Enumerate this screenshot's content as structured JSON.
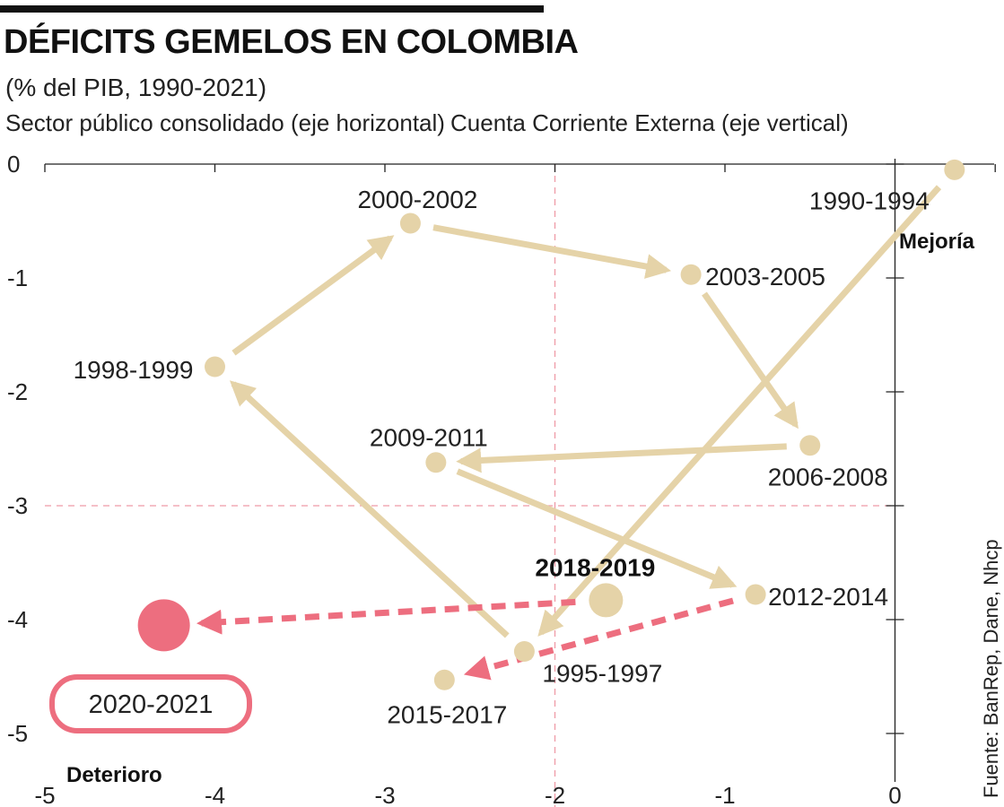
{
  "header": {
    "title": "DÉFICITS GEMELOS EN COLOMBIA",
    "subtitle": "(% del PIB, 1990-2021)"
  },
  "colors": {
    "point": "#e5d3a8",
    "highlight": "#ed6e7f",
    "guide": "#ef9aa6",
    "axis": "#222222"
  },
  "chart_data": {
    "type": "scatter",
    "title": "DÉFICITS GEMELOS EN COLOMBIA",
    "subtitle": "(% del PIB, 1990-2021)",
    "xlabel": "Sector público consolidado (eje horizontal)",
    "ylabel": "Cuenta Corriente Externa (eje vertical)",
    "xlim": [
      -5,
      0.6
    ],
    "ylim": [
      -5.3,
      0
    ],
    "x_ticks": [
      "-5",
      "-4",
      "-3",
      "-2",
      "-1",
      "0"
    ],
    "y_ticks": [
      "0",
      "-1",
      "-2",
      "-3",
      "-4",
      "-5"
    ],
    "reference_lines": {
      "x": -2,
      "y": -3
    },
    "points": [
      {
        "label": "1990-1994",
        "x": 0.35,
        "y": -0.05
      },
      {
        "label": "1995-1997",
        "x": -2.18,
        "y": -4.28
      },
      {
        "label": "1998-1999",
        "x": -4.0,
        "y": -1.78
      },
      {
        "label": "2000-2002",
        "x": -2.85,
        "y": -0.52
      },
      {
        "label": "2003-2005",
        "x": -1.2,
        "y": -0.97
      },
      {
        "label": "2006-2008",
        "x": -0.5,
        "y": -2.47
      },
      {
        "label": "2009-2011",
        "x": -2.7,
        "y": -2.62
      },
      {
        "label": "2012-2014",
        "x": -0.82,
        "y": -3.78
      },
      {
        "label": "2015-2017",
        "x": -2.65,
        "y": -4.53
      },
      {
        "label": "2018-2019",
        "x": -1.7,
        "y": -3.83
      },
      {
        "label": "2020-2021",
        "x": -4.3,
        "y": -4.05
      }
    ],
    "path": [
      "1990-1994",
      "1995-1997",
      "1998-1999",
      "2000-2002",
      "2003-2005",
      "2006-2008",
      "2009-2011",
      "2012-2014",
      "2015-2017",
      "2018-2019",
      "2020-2021"
    ],
    "annotations": {
      "improvement": "Mejoría",
      "deterioration": "Deterioro"
    },
    "source": "Fuente: BanRep, Dane, Nhcp"
  }
}
